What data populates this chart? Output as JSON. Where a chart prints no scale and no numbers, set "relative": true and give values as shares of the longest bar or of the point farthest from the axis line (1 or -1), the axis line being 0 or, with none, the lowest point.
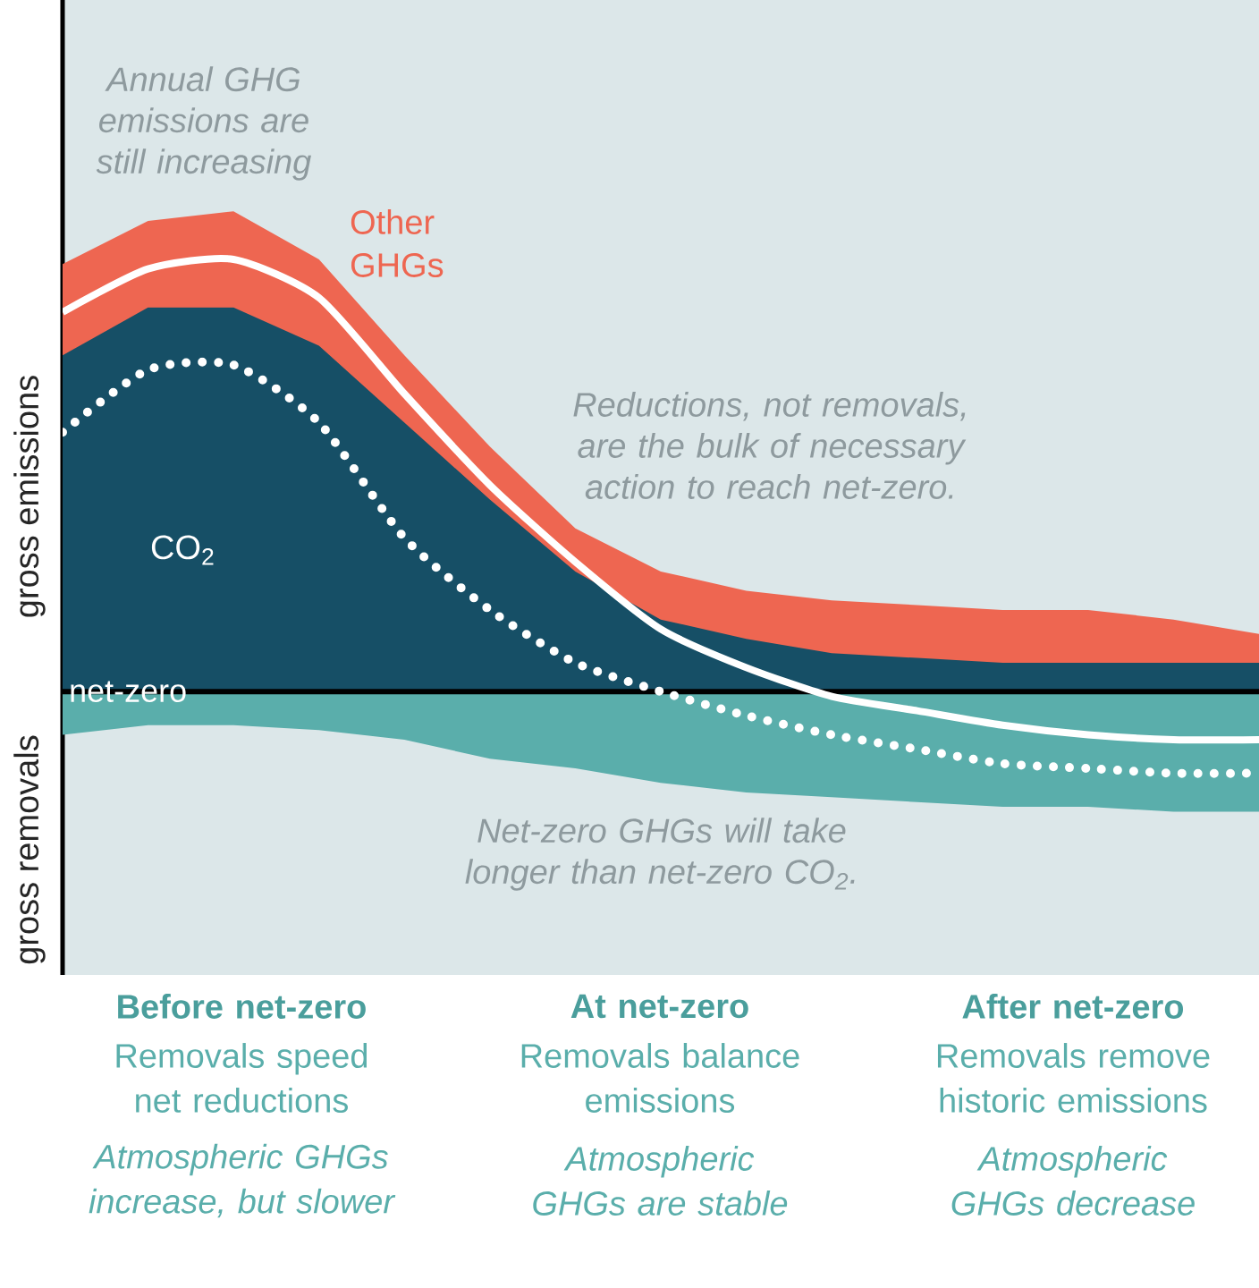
{
  "chart_data": {
    "type": "area",
    "relative": true,
    "ylabel": "gross emissions",
    "categories": [
      null,
      null,
      null,
      null,
      null,
      null,
      null,
      null,
      null,
      null,
      null,
      null,
      null,
      null,
      null
    ],
    "series": [
      {
        "name": "Other GHGs",
        "color": "#ee6651",
        "values": [
          0.89,
          0.98,
          1.0,
          0.9,
          0.7,
          0.51,
          0.34,
          0.25,
          0.21,
          0.19,
          0.18,
          0.17,
          0.17,
          0.15,
          0.12
        ]
      },
      {
        "name": "CO$_{2}$",
        "color": "#164f66",
        "values": [
          0.7,
          0.8,
          0.8,
          0.72,
          0.56,
          0.4,
          0.25,
          0.15,
          0.11,
          0.08,
          0.07,
          0.06,
          0.06,
          0.06,
          0.06
        ]
      },
      {
        "color": "#5aaeab",
        "values": [
          -0.09,
          -0.07,
          -0.07,
          -0.08,
          -0.1,
          -0.14,
          -0.16,
          -0.19,
          -0.21,
          -0.22,
          -0.23,
          -0.24,
          -0.24,
          -0.25,
          -0.25
        ]
      },
      {
        "type": "line",
        "color": "#ffffff",
        "values": [
          0.79,
          0.88,
          0.9,
          0.82,
          0.62,
          0.43,
          0.27,
          0.13,
          0.05,
          -0.01,
          -0.04,
          -0.07,
          -0.09,
          -0.1,
          -0.1
        ]
      },
      {
        "type": "line",
        "color": "#ffffff",
        "line_style": "dotted",
        "values": [
          0.54,
          0.67,
          0.68,
          0.56,
          0.32,
          0.17,
          0.06,
          0.0,
          -0.05,
          -0.09,
          -0.12,
          -0.15,
          -0.16,
          -0.17,
          -0.17
        ]
      }
    ],
    "ref_lines": [
      {
        "axis": "y",
        "value": 0,
        "label": "net-zero",
        "color": "#000000"
      }
    ],
    "annotations": [
      "Annual GHG emissions are still increasing",
      "Reductions, not removals, are the bulk of necessary action to reach net-zero.",
      "Net-zero GHGs will take longer than net-zero CO$_{2}$.",
      "gross removals",
      "Before net-zero",
      "Removals speed net reductions",
      "Atmospheric GHGs increase, but slower",
      "At net-zero",
      "Removals balance emissions",
      "Atmospheric GHGs are stable",
      "After net-zero",
      "Removals remove historic emissions",
      "Atmospheric GHGs decrease"
    ]
  }
}
